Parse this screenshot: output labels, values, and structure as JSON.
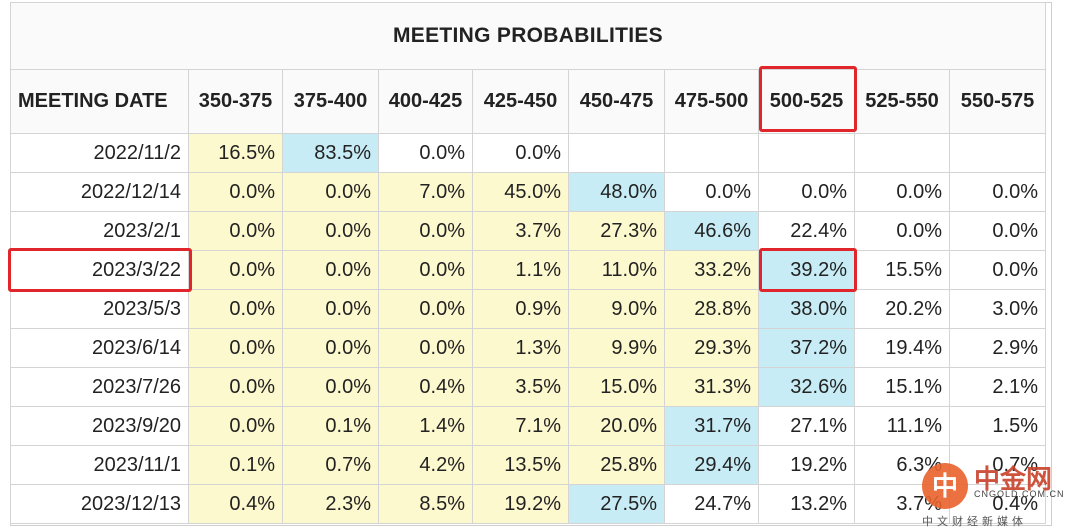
{
  "table": {
    "title": "MEETING PROBABILITIES",
    "headers": [
      "MEETING DATE",
      "350-375",
      "375-400",
      "400-425",
      "425-450",
      "450-475",
      "475-500",
      "500-525",
      "525-550",
      "550-575"
    ],
    "rows": [
      {
        "date": "2022/11/2",
        "values": [
          "16.5%",
          "83.5%",
          "0.0%",
          "0.0%",
          "",
          "",
          "",
          "",
          ""
        ]
      },
      {
        "date": "2022/12/14",
        "values": [
          "0.0%",
          "0.0%",
          "7.0%",
          "45.0%",
          "48.0%",
          "0.0%",
          "0.0%",
          "0.0%",
          "0.0%"
        ]
      },
      {
        "date": "2023/2/1",
        "values": [
          "0.0%",
          "0.0%",
          "0.0%",
          "3.7%",
          "27.3%",
          "46.6%",
          "22.4%",
          "0.0%",
          "0.0%"
        ]
      },
      {
        "date": "2023/3/22",
        "values": [
          "0.0%",
          "0.0%",
          "0.0%",
          "1.1%",
          "11.0%",
          "33.2%",
          "39.2%",
          "15.5%",
          "0.0%"
        ]
      },
      {
        "date": "2023/5/3",
        "values": [
          "0.0%",
          "0.0%",
          "0.0%",
          "0.9%",
          "9.0%",
          "28.8%",
          "38.0%",
          "20.2%",
          "3.0%"
        ]
      },
      {
        "date": "2023/6/14",
        "values": [
          "0.0%",
          "0.0%",
          "0.0%",
          "1.3%",
          "9.9%",
          "29.3%",
          "37.2%",
          "19.4%",
          "2.9%"
        ]
      },
      {
        "date": "2023/7/26",
        "values": [
          "0.0%",
          "0.0%",
          "0.4%",
          "3.5%",
          "15.0%",
          "31.3%",
          "32.6%",
          "15.1%",
          "2.1%"
        ]
      },
      {
        "date": "2023/9/20",
        "values": [
          "0.0%",
          "0.1%",
          "1.4%",
          "7.1%",
          "20.0%",
          "31.7%",
          "27.1%",
          "11.1%",
          "1.5%"
        ]
      },
      {
        "date": "2023/11/1",
        "values": [
          "0.1%",
          "0.7%",
          "4.2%",
          "13.5%",
          "25.8%",
          "29.4%",
          "19.2%",
          "6.3%",
          "0.7%"
        ]
      },
      {
        "date": "2023/12/13",
        "values": [
          "0.4%",
          "2.3%",
          "8.5%",
          "19.2%",
          "27.5%",
          "24.7%",
          "13.2%",
          "3.7%",
          "0.4%"
        ]
      }
    ],
    "shading": [
      [
        "y",
        "b",
        "w",
        "w",
        "w",
        "w",
        "w",
        "w",
        "w"
      ],
      [
        "y",
        "y",
        "y",
        "y",
        "b",
        "w",
        "w",
        "w",
        "w"
      ],
      [
        "y",
        "y",
        "y",
        "y",
        "y",
        "b",
        "w",
        "w",
        "w"
      ],
      [
        "y",
        "y",
        "y",
        "y",
        "y",
        "y",
        "b",
        "w",
        "w"
      ],
      [
        "y",
        "y",
        "y",
        "y",
        "y",
        "y",
        "b",
        "w",
        "w"
      ],
      [
        "y",
        "y",
        "y",
        "y",
        "y",
        "y",
        "b",
        "w",
        "w"
      ],
      [
        "y",
        "y",
        "y",
        "y",
        "y",
        "y",
        "b",
        "w",
        "w"
      ],
      [
        "y",
        "y",
        "y",
        "y",
        "y",
        "b",
        "w",
        "w",
        "w"
      ],
      [
        "y",
        "y",
        "y",
        "y",
        "y",
        "b",
        "w",
        "w",
        "w"
      ],
      [
        "y",
        "y",
        "y",
        "y",
        "b",
        "w",
        "w",
        "w",
        "w"
      ]
    ]
  },
  "colors": {
    "yellow": "#fdf9cf",
    "blue": "#c8ecf5",
    "highlight": "#e0252b"
  },
  "watermark": {
    "logo_char": "中",
    "name": "中金网",
    "url": "CNGOLD.COM.CN",
    "tagline": "中文财经新媒体"
  }
}
